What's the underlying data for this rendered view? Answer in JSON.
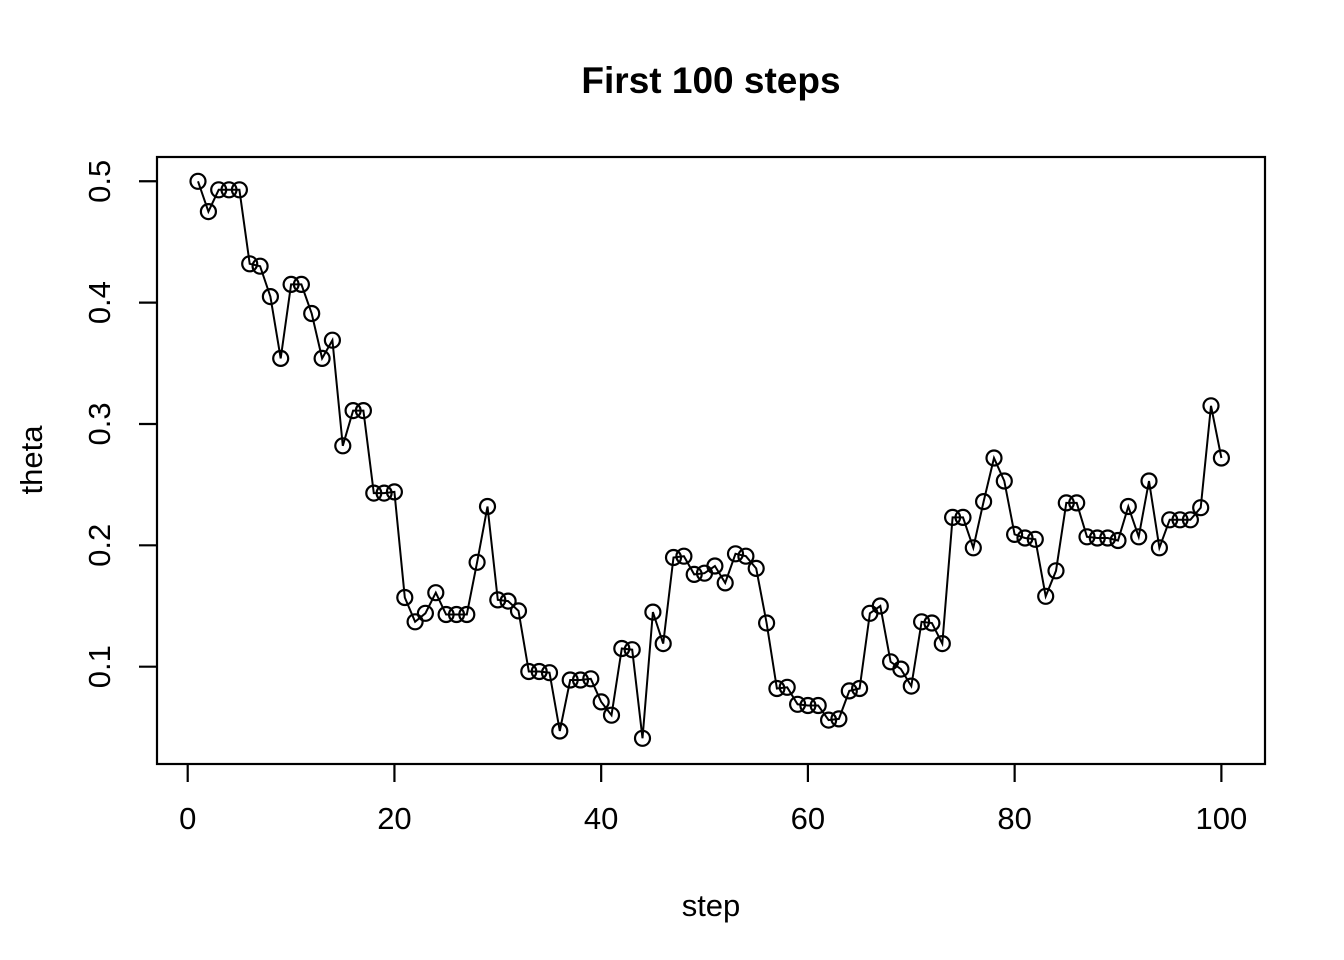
{
  "figure": {
    "background": "#ffffff",
    "foreground": "#000000"
  },
  "chart_data": {
    "type": "line",
    "title": "First 100 steps",
    "xlabel": "step",
    "ylabel": "theta",
    "marker": "open-circle",
    "line_color": "#000000",
    "marker_color": "#000000",
    "grid": false,
    "legend": false,
    "x_ticks": [
      0,
      20,
      40,
      60,
      80,
      100
    ],
    "y_tick_labels": [
      "0.1",
      "0.2",
      "0.3",
      "0.4",
      "0.5"
    ],
    "y_ticks": [
      0.1,
      0.2,
      0.3,
      0.4,
      0.5
    ],
    "xlim": [
      -2.97,
      104.22
    ],
    "ylim": [
      0.0198,
      0.52
    ],
    "x": [
      1,
      2,
      3,
      4,
      5,
      6,
      7,
      8,
      9,
      10,
      11,
      12,
      13,
      14,
      15,
      16,
      17,
      18,
      19,
      20,
      21,
      22,
      23,
      24,
      25,
      26,
      27,
      28,
      29,
      30,
      31,
      32,
      33,
      34,
      35,
      36,
      37,
      38,
      39,
      40,
      41,
      42,
      43,
      44,
      45,
      46,
      47,
      48,
      49,
      50,
      51,
      52,
      53,
      54,
      55,
      56,
      57,
      58,
      59,
      60,
      61,
      62,
      63,
      64,
      65,
      66,
      67,
      68,
      69,
      70,
      71,
      72,
      73,
      74,
      75,
      76,
      77,
      78,
      79,
      80,
      81,
      82,
      83,
      84,
      85,
      86,
      87,
      88,
      89,
      90,
      91,
      92,
      93,
      94,
      95,
      96,
      97,
      98,
      99,
      100
    ],
    "y": [
      0.5,
      0.475,
      0.493,
      0.493,
      0.493,
      0.432,
      0.43,
      0.405,
      0.354,
      0.415,
      0.415,
      0.391,
      0.354,
      0.369,
      0.282,
      0.311,
      0.311,
      0.243,
      0.243,
      0.244,
      0.157,
      0.137,
      0.144,
      0.161,
      0.143,
      0.143,
      0.143,
      0.186,
      0.232,
      0.155,
      0.154,
      0.146,
      0.096,
      0.096,
      0.095,
      0.047,
      0.089,
      0.089,
      0.09,
      0.071,
      0.06,
      0.115,
      0.114,
      0.041,
      0.145,
      0.119,
      0.19,
      0.191,
      0.176,
      0.177,
      0.183,
      0.169,
      0.193,
      0.191,
      0.181,
      0.136,
      0.082,
      0.083,
      0.069,
      0.068,
      0.068,
      0.056,
      0.057,
      0.08,
      0.082,
      0.144,
      0.15,
      0.104,
      0.098,
      0.084,
      0.137,
      0.136,
      0.119,
      0.223,
      0.223,
      0.198,
      0.236,
      0.272,
      0.253,
      0.209,
      0.206,
      0.205,
      0.158,
      0.179,
      0.235,
      0.235,
      0.207,
      0.206,
      0.206,
      0.204,
      0.232,
      0.207,
      0.253,
      0.198,
      0.221,
      0.221,
      0.221,
      0.231,
      0.315,
      0.272
    ]
  }
}
